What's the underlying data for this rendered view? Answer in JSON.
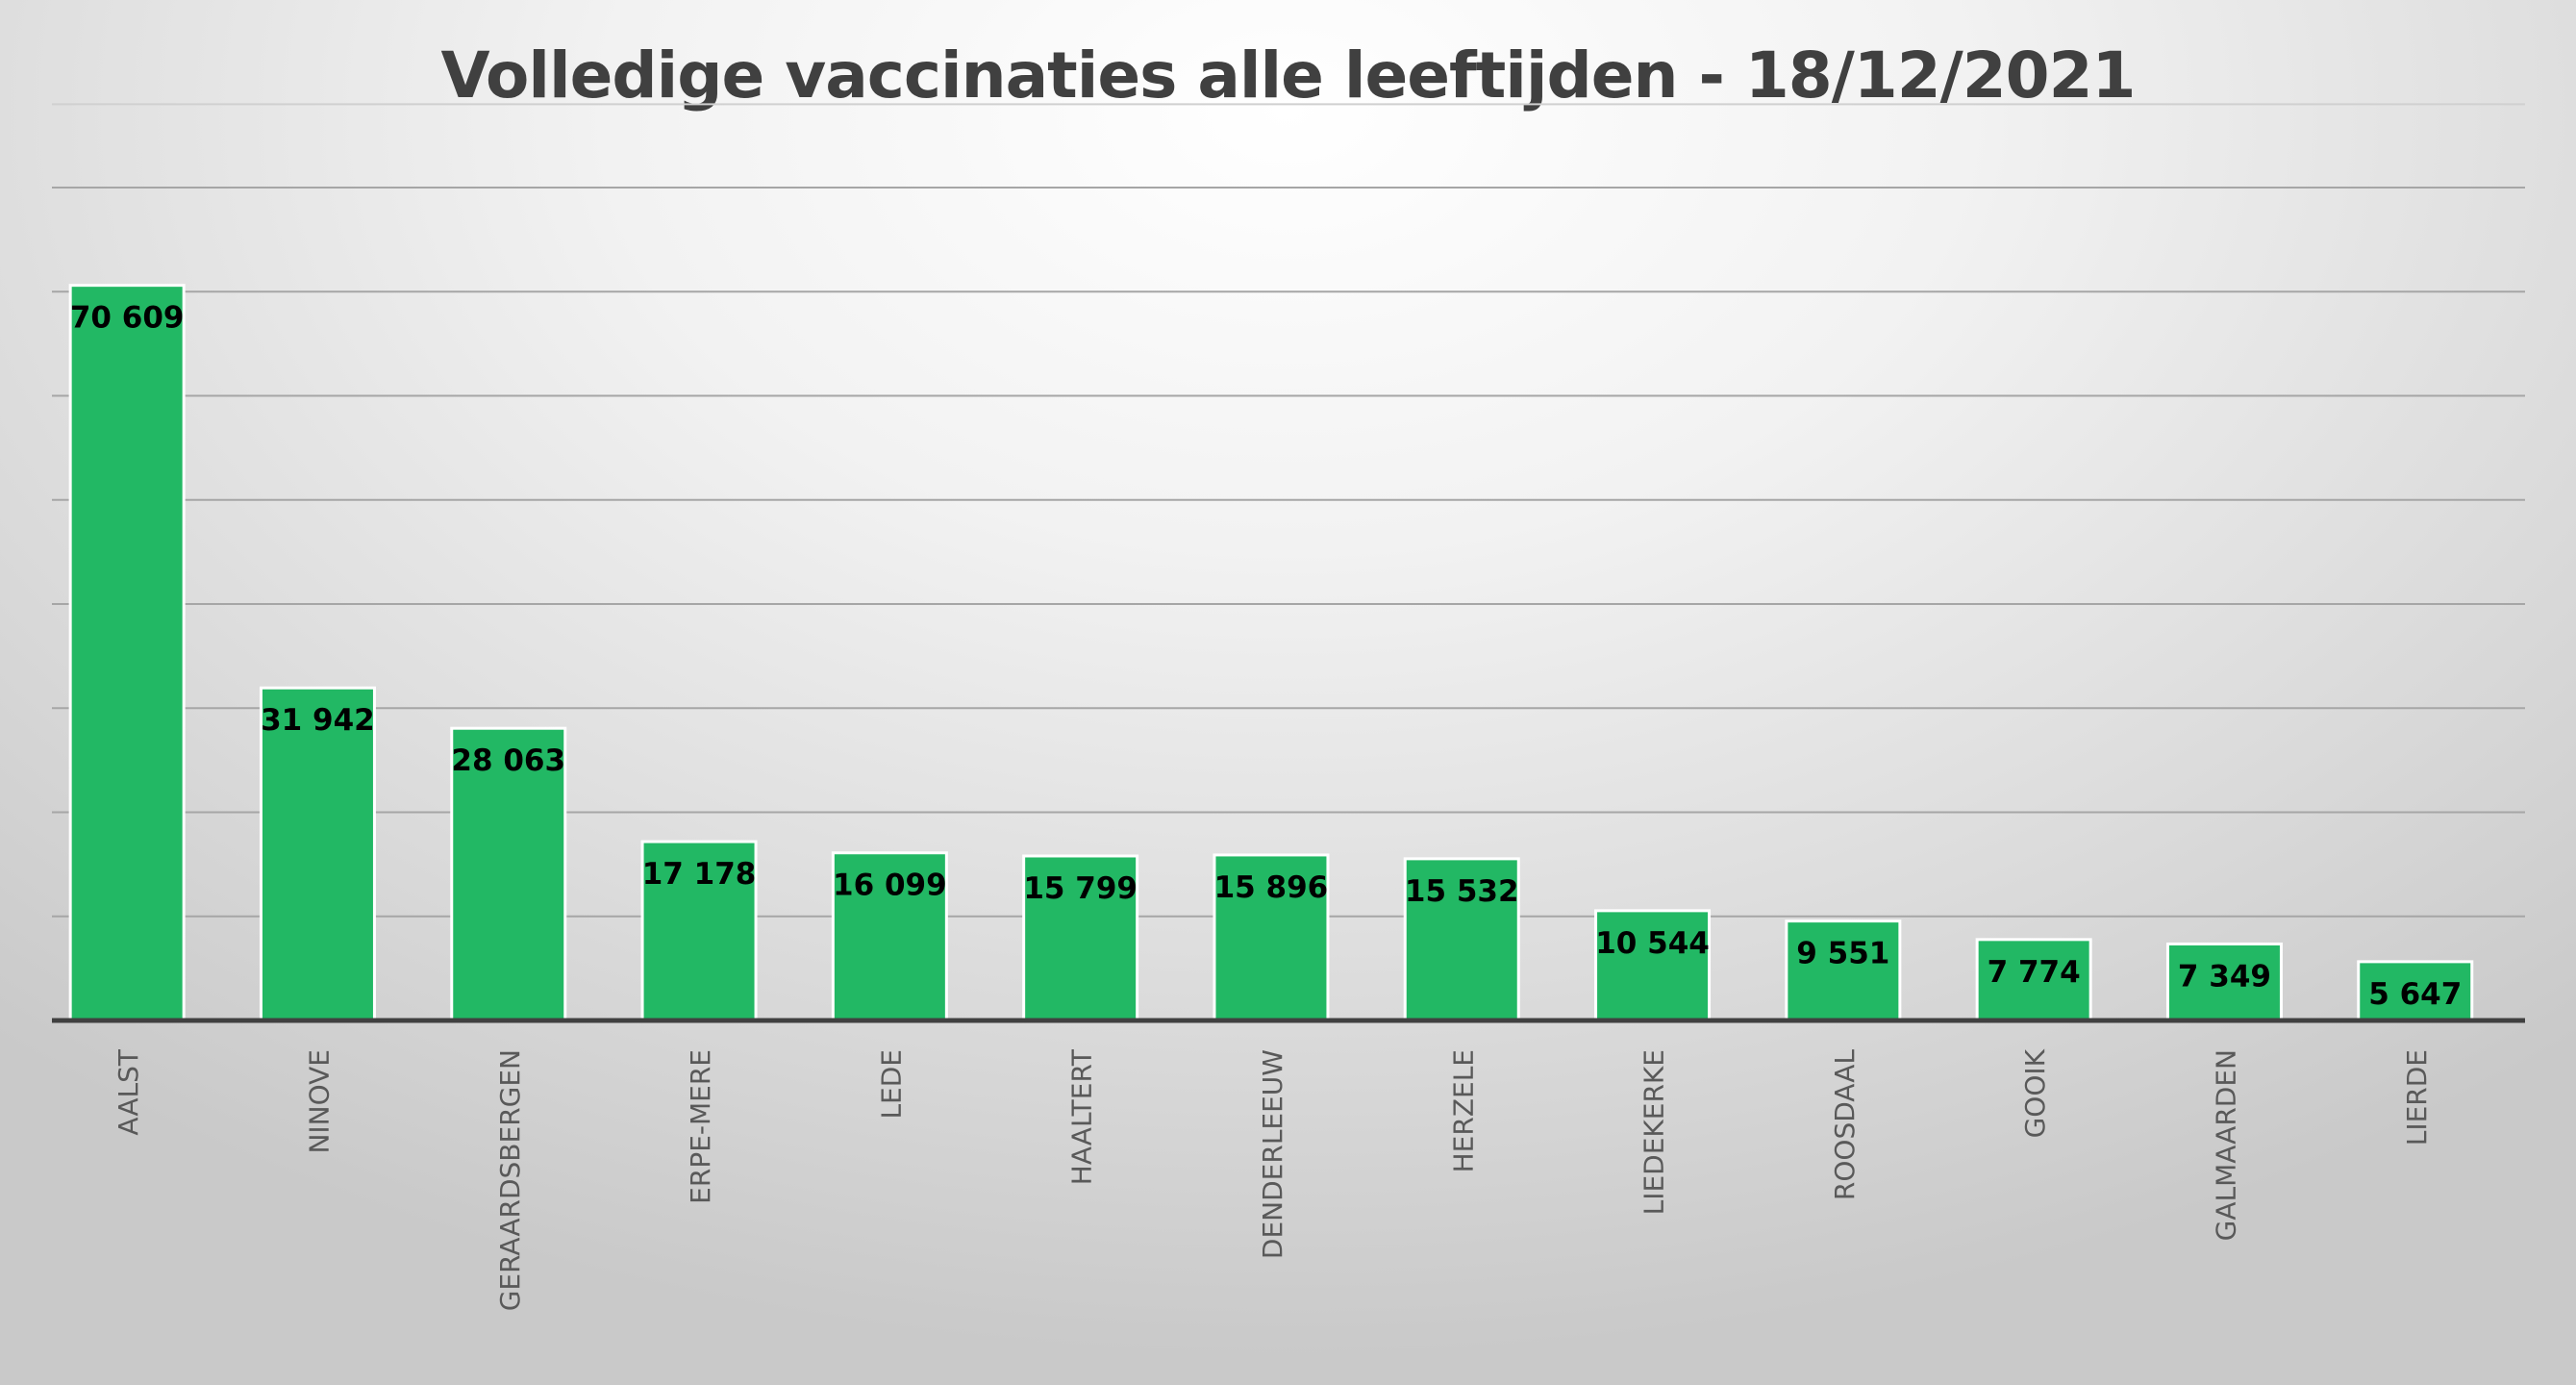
{
  "chart_data": {
    "type": "bar",
    "title": "Volledige vaccinaties alle leeftijden - 18/12/2021",
    "xlabel": "",
    "ylabel": "",
    "ylim": [
      0,
      80000
    ],
    "y_gridlines": [
      10000,
      20000,
      30000,
      40000,
      50000,
      60000,
      70000,
      80000
    ],
    "grid": true,
    "legend": "none",
    "bar_color": "#22b864",
    "categories": [
      "AALST",
      "NINOVE",
      "GERAARDSBERGEN",
      "ERPE-MERE",
      "LEDE",
      "HAALTERT",
      "DENDERLEEUW",
      "HERZELE",
      "LIEDEKERKE",
      "ROOSDAAL",
      "GOOIK",
      "GALMAARDEN",
      "LIERDE"
    ],
    "values": [
      70609,
      31942,
      28063,
      17178,
      16099,
      15799,
      15896,
      15532,
      10544,
      9551,
      7774,
      7349,
      5647
    ],
    "value_labels": [
      "70 609",
      "31 942",
      "28 063",
      "17 178",
      "16 099",
      "15 799",
      "15 896",
      "15 532",
      "10 544",
      "9 551",
      "7 774",
      "7 349",
      "5 647"
    ]
  }
}
